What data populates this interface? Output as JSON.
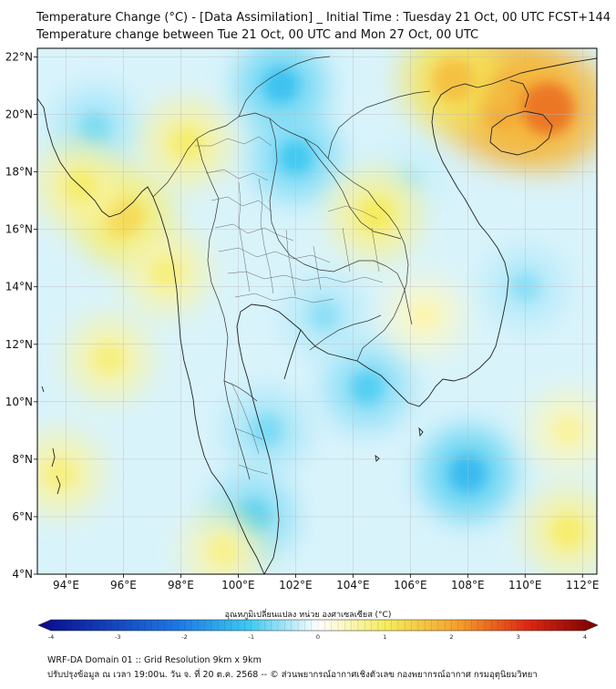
{
  "header": {
    "title_line1": "Temperature Change (°C) - [Data Assimilation] _ Initial Time : Tuesday 21 Oct, 00 UTC FCST+144",
    "title_line2": "Temperature change between Tue 21 Oct, 00 UTC and Mon 27 Oct, 00 UTC"
  },
  "map": {
    "lat_ticks": [
      "22°N",
      "20°N",
      "18°N",
      "16°N",
      "14°N",
      "12°N",
      "10°N",
      "8°N",
      "6°N",
      "4°N"
    ],
    "lon_ticks": [
      "94°E",
      "96°E",
      "98°E",
      "100°E",
      "102°E",
      "104°E",
      "106°E",
      "108°E",
      "110°E",
      "112°E"
    ],
    "lon_range": [
      93,
      112.5
    ],
    "lat_range": [
      4,
      22.3
    ],
    "warm_spots": [
      {
        "lon": 109.3,
        "lat": 20.5,
        "value": 2.5
      },
      {
        "lon": 110.8,
        "lat": 20.2,
        "value": 2.4
      },
      {
        "lon": 107.5,
        "lat": 21.2,
        "value": 1.6
      },
      {
        "lon": 96.0,
        "lat": 16.4,
        "value": 1.3
      },
      {
        "lon": 94.5,
        "lat": 17.5,
        "value": 0.9
      },
      {
        "lon": 98.2,
        "lat": 19.0,
        "value": 0.9
      },
      {
        "lon": 104.8,
        "lat": 16.5,
        "value": 1.0
      },
      {
        "lon": 97.5,
        "lat": 14.5,
        "value": 0.8
      },
      {
        "lon": 95.5,
        "lat": 11.5,
        "value": 0.8
      },
      {
        "lon": 99.5,
        "lat": 4.8,
        "value": 0.7
      },
      {
        "lon": 111.5,
        "lat": 5.5,
        "value": 0.9
      },
      {
        "lon": 111.5,
        "lat": 9.0,
        "value": 0.6
      },
      {
        "lon": 106.5,
        "lat": 13.0,
        "value": 0.5
      },
      {
        "lon": 93.8,
        "lat": 7.5,
        "value": 0.8
      }
    ],
    "cold_spots": [
      {
        "lon": 101.5,
        "lat": 21.0,
        "value": -1.1
      },
      {
        "lon": 102.0,
        "lat": 18.5,
        "value": -1.0
      },
      {
        "lon": 95.0,
        "lat": 19.5,
        "value": -0.7
      },
      {
        "lon": 108.0,
        "lat": 7.5,
        "value": -1.2
      },
      {
        "lon": 104.5,
        "lat": 10.5,
        "value": -0.9
      },
      {
        "lon": 100.5,
        "lat": 6.0,
        "value": -0.9
      },
      {
        "lon": 103.0,
        "lat": 13.0,
        "value": -0.6
      },
      {
        "lon": 110.0,
        "lat": 14.0,
        "value": -0.6
      },
      {
        "lon": 101.0,
        "lat": 9.0,
        "value": -0.7
      },
      {
        "lon": 106.0,
        "lat": 17.8,
        "value": -0.4
      }
    ]
  },
  "colorbar": {
    "label": "อุณหภูมิเปลี่ยนแปลง หน่วย องศาเซลเซียส (°C)",
    "min": -4,
    "max": 4,
    "ticks": [
      "-4",
      "-3",
      "-2",
      "-1",
      "0",
      "1",
      "2",
      "3",
      "4"
    ],
    "colors": {
      "minus4": "#0a0a8c",
      "minus2": "#1e78e6",
      "minus1": "#3cc8f0",
      "zero": "#ffffff",
      "plus1": "#f5eb5a",
      "plus2": "#f5a02d",
      "plus3": "#dc2814",
      "plus4": "#780000"
    }
  },
  "footer": {
    "line1": "WRF-DA Domain 01 :: Grid Resolution 9km x 9km",
    "line2": "ปรับปรุงข้อมูล ณ เวลา 19:00น. วัน จ. ที่ 20 ต.ค. 2568 -- © ส่วนพยากรณ์อากาศเชิงตัวเลข กองพยากรณ์อากาศ กรมอุตุนิยมวิทยา"
  }
}
